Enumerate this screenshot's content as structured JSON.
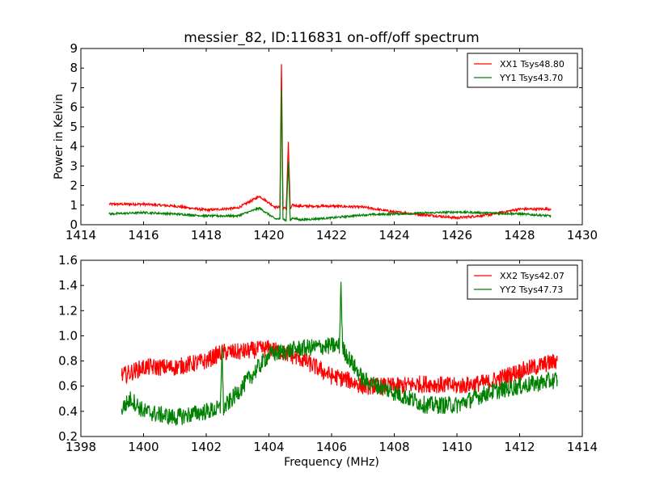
{
  "chart_data": [
    {
      "type": "line",
      "title": "messier_82, ID:116831 on-off/off spectrum",
      "xlabel": "",
      "ylabel": "Power in Kelvin",
      "xlim": [
        1414,
        1430
      ],
      "ylim": [
        0,
        9
      ],
      "xticks": [
        "1414",
        "1416",
        "1418",
        "1420",
        "1422",
        "1424",
        "1426",
        "1428",
        "1430"
      ],
      "yticks": [
        "0",
        "1",
        "2",
        "3",
        "4",
        "5",
        "6",
        "7",
        "8",
        "9"
      ],
      "legend_position": "top-right",
      "series": [
        {
          "name": "XX1 Tsys48.80",
          "color": "#ff0000",
          "noise": 0.06,
          "x": [
            1414.9,
            1416,
            1417,
            1418,
            1419,
            1419.7,
            1420.2,
            1420.35,
            1420.4,
            1420.45,
            1420.55,
            1420.62,
            1420.68,
            1420.75,
            1421,
            1422,
            1423,
            1424,
            1425,
            1426,
            1427,
            1428,
            1429
          ],
          "y": [
            1.05,
            1.05,
            0.95,
            0.75,
            0.85,
            1.45,
            0.9,
            0.9,
            8.2,
            0.9,
            0.8,
            4.2,
            0.8,
            1.0,
            0.95,
            0.95,
            0.9,
            0.65,
            0.5,
            0.35,
            0.5,
            0.8,
            0.8
          ]
        },
        {
          "name": "YY1 Tsys43.70",
          "color": "#008000",
          "noise": 0.05,
          "x": [
            1414.9,
            1416,
            1417,
            1418,
            1419,
            1419.7,
            1420.2,
            1420.35,
            1420.4,
            1420.45,
            1420.55,
            1420.62,
            1420.68,
            1420.75,
            1421,
            1422,
            1423,
            1424,
            1425,
            1426,
            1427,
            1428,
            1429
          ],
          "y": [
            0.55,
            0.62,
            0.55,
            0.45,
            0.45,
            0.85,
            0.3,
            0.3,
            6.9,
            0.3,
            0.2,
            3.2,
            0.2,
            0.35,
            0.25,
            0.35,
            0.5,
            0.55,
            0.6,
            0.65,
            0.6,
            0.55,
            0.45
          ]
        }
      ]
    },
    {
      "type": "line",
      "title": "",
      "xlabel": "Frequency (MHz)",
      "ylabel": "",
      "xlim": [
        1398,
        1414
      ],
      "ylim": [
        0.2,
        1.6
      ],
      "xticks": [
        "1398",
        "1400",
        "1402",
        "1404",
        "1406",
        "1408",
        "1410",
        "1412",
        "1414"
      ],
      "yticks": [
        "0.2",
        "0.4",
        "0.6",
        "0.8",
        "1.0",
        "1.2",
        "1.4",
        "1.6"
      ],
      "legend_position": "top-right",
      "series": [
        {
          "name": "XX2 Tsys42.07",
          "color": "#ff0000",
          "noise": 0.07,
          "x": [
            1399.3,
            1400,
            1401,
            1402,
            1402.5,
            1403,
            1404,
            1405,
            1406,
            1406.5,
            1407,
            1408,
            1409,
            1410,
            1411,
            1412,
            1413.2
          ],
          "y": [
            0.68,
            0.75,
            0.75,
            0.8,
            0.87,
            0.87,
            0.9,
            0.82,
            0.68,
            0.65,
            0.6,
            0.6,
            0.62,
            0.6,
            0.63,
            0.72,
            0.8
          ]
        },
        {
          "name": "YY2 Tsys47.73",
          "color": "#008000",
          "noise": 0.07,
          "x": [
            1399.3,
            1399.6,
            1400,
            1401,
            1402,
            1402.45,
            1402.5,
            1402.55,
            1403,
            1404,
            1405,
            1406,
            1406.25,
            1406.3,
            1406.35,
            1407,
            1408,
            1409,
            1410,
            1411,
            1412,
            1413.2
          ],
          "y": [
            0.42,
            0.5,
            0.4,
            0.35,
            0.4,
            0.42,
            0.92,
            0.42,
            0.55,
            0.85,
            0.9,
            0.92,
            0.92,
            1.43,
            0.9,
            0.65,
            0.55,
            0.45,
            0.45,
            0.55,
            0.6,
            0.65
          ]
        }
      ]
    }
  ]
}
